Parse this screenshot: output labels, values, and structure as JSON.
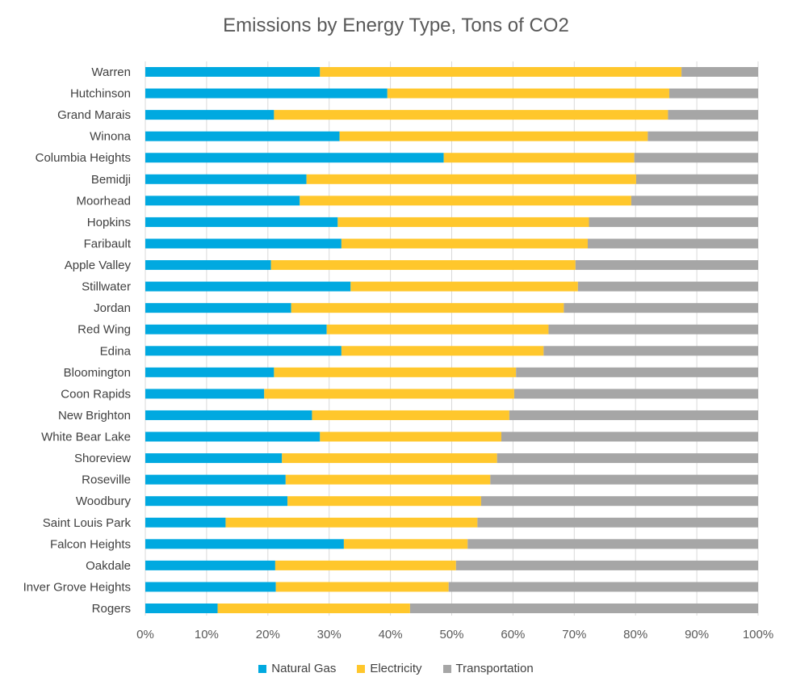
{
  "chart_data": {
    "type": "bar",
    "orientation": "horizontal",
    "stacked": "percent",
    "title": "Emissions by Energy Type, Tons of CO2",
    "xlabel": "",
    "ylabel": "",
    "xlim": [
      0,
      100
    ],
    "x_ticks": [
      "0%",
      "10%",
      "20%",
      "30%",
      "40%",
      "50%",
      "60%",
      "70%",
      "80%",
      "90%",
      "100%"
    ],
    "grid": true,
    "legend_position": "bottom",
    "categories": [
      "Warren",
      "Hutchinson",
      "Grand Marais",
      "Winona",
      "Columbia Heights",
      "Bemidji",
      "Moorhead",
      "Hopkins",
      "Faribault",
      "Apple Valley",
      "Stillwater",
      "Jordan",
      "Red Wing",
      "Edina",
      "Bloomington",
      "Coon Rapids",
      "New Brighton",
      "White Bear Lake",
      "Shoreview",
      "Roseville",
      "Woodbury",
      "Saint Louis Park",
      "Falcon Heights",
      "Oakdale",
      "Inver Grove Heights",
      "Rogers"
    ],
    "series": [
      {
        "name": "Natural Gas",
        "color": "#00A9E0",
        "values": [
          28.5,
          39.5,
          21,
          31.7,
          48.7,
          26.3,
          25.2,
          31.4,
          32,
          20.5,
          33.5,
          23.8,
          29.6,
          32,
          21,
          19.4,
          27.2,
          28.5,
          22.3,
          22.9,
          23.2,
          13.1,
          32.4,
          21.2,
          21.3,
          11.8
        ]
      },
      {
        "name": "Electricity",
        "color": "#FFC72C",
        "values": [
          59,
          46,
          64.3,
          50.3,
          31.1,
          53.8,
          54.1,
          41,
          40.2,
          49.7,
          37.1,
          44.5,
          36.2,
          33,
          39.5,
          40.8,
          32.2,
          29.6,
          35.1,
          33.4,
          31.6,
          41.1,
          20.2,
          29.5,
          28.2,
          31.4
        ]
      },
      {
        "name": "Transportation",
        "color": "#A6A6A6",
        "values": [
          12.5,
          14.5,
          14.7,
          18,
          20.2,
          19.9,
          20.7,
          27.6,
          27.8,
          29.8,
          29.4,
          31.7,
          34.2,
          35,
          39.5,
          39.8,
          40.6,
          41.9,
          42.6,
          43.7,
          45.2,
          45.8,
          47.4,
          49.3,
          50.5,
          56.8
        ]
      }
    ]
  }
}
